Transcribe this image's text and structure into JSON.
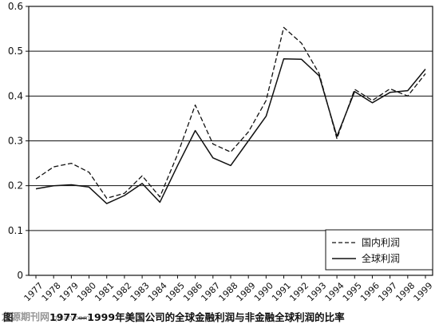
{
  "chart_data": {
    "type": "line",
    "title": "1977—1999年美国公司的全球金融利润与非金融全球利润的比率",
    "figure_label": "图",
    "xlabel": "",
    "ylabel": "",
    "x": [
      "1977",
      "1978",
      "1979",
      "1980",
      "1981",
      "1982",
      "1983",
      "1984",
      "1985",
      "1986",
      "1987",
      "1988",
      "1989",
      "1990",
      "1991",
      "1992",
      "1993",
      "1994",
      "1995",
      "1996",
      "1997",
      "1998",
      "1999"
    ],
    "y_ticks": [
      "0",
      "0.1",
      "0.2",
      "0.3",
      "0.4",
      "0.5",
      "0.6"
    ],
    "ylim": [
      0,
      0.6
    ],
    "grid": "horizontal",
    "legend_position": "bottom-right",
    "series": [
      {
        "name": "国内利润",
        "style": "dashed",
        "color": "#111111",
        "values": [
          0.215,
          0.242,
          0.25,
          0.23,
          0.172,
          0.183,
          0.222,
          0.175,
          0.27,
          0.38,
          0.293,
          0.275,
          0.32,
          0.39,
          0.553,
          0.518,
          0.45,
          0.305,
          0.415,
          0.39,
          0.416,
          0.4,
          0.45
        ]
      },
      {
        "name": "全球利润",
        "style": "solid",
        "color": "#111111",
        "values": [
          0.193,
          0.2,
          0.202,
          0.197,
          0.16,
          0.178,
          0.205,
          0.163,
          0.245,
          0.323,
          0.262,
          0.245,
          0.3,
          0.355,
          0.483,
          0.482,
          0.445,
          0.31,
          0.41,
          0.385,
          0.408,
          0.412,
          0.46
        ]
      }
    ]
  },
  "colors": {
    "background": "#ffffff",
    "ink": "#111111",
    "grid": "#111111"
  },
  "watermark": {
    "site": "龙源期刊网",
    "url": "qikan.com"
  }
}
